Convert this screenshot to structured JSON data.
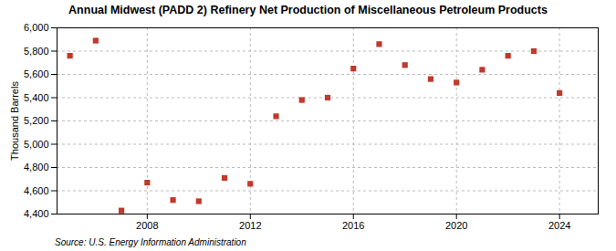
{
  "chart_data": {
    "type": "scatter",
    "title": "Annual Midwest (PADD 2) Refinery Net Production of Miscellaneous Petroleum Products",
    "ylabel": "Thousand Barrels",
    "source": "Source: U.S. Energy Information Administration",
    "x": [
      2005,
      2006,
      2007,
      2008,
      2009,
      2010,
      2011,
      2012,
      2013,
      2014,
      2015,
      2016,
      2017,
      2018,
      2019,
      2020,
      2021,
      2022,
      2023,
      2024
    ],
    "values": [
      5760,
      5890,
      4430,
      4670,
      4520,
      4510,
      4710,
      4660,
      5240,
      5380,
      5400,
      5650,
      5860,
      5680,
      5560,
      5530,
      5640,
      5760,
      5800,
      5440
    ],
    "color": "#c0392b",
    "marker": "square",
    "xlim": [
      2004.5,
      2025.5
    ],
    "ylim": [
      4400,
      6000
    ],
    "xticks": [
      2008,
      2012,
      2016,
      2020,
      2024
    ],
    "yticks": [
      {
        "value": 4400,
        "label": "4,400"
      },
      {
        "value": 4600,
        "label": "4,600"
      },
      {
        "value": 4800,
        "label": "4,800"
      },
      {
        "value": 5000,
        "label": "5,000"
      },
      {
        "value": 5200,
        "label": "5,200"
      },
      {
        "value": 5400,
        "label": "5,400"
      },
      {
        "value": 5600,
        "label": "5,600"
      },
      {
        "value": 5800,
        "label": "5,800"
      },
      {
        "value": 6000,
        "label": "6,000"
      }
    ],
    "grid": true
  }
}
